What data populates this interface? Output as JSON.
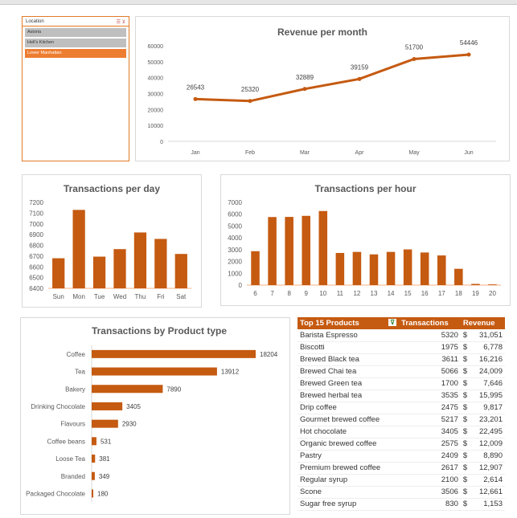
{
  "slicer": {
    "title": "Location",
    "items": [
      {
        "label": "Astoria",
        "selected": false
      },
      {
        "label": "Hell's Kitchen",
        "selected": false
      },
      {
        "label": "Lower Manhattan",
        "selected": true
      }
    ]
  },
  "colors": {
    "accent": "#c55a11",
    "slicer_selected": "#ed7d31"
  },
  "chart_data": [
    {
      "type": "line",
      "title": "Revenue per month",
      "categories": [
        "Jan",
        "Feb",
        "Mar",
        "Apr",
        "May",
        "Jun"
      ],
      "values": [
        26543,
        25320,
        32889,
        39159,
        51700,
        54446
      ],
      "ylim": [
        0,
        60000
      ],
      "yticks": [
        0,
        10000,
        20000,
        30000,
        40000,
        50000,
        60000
      ]
    },
    {
      "type": "bar",
      "title": "Transactions per day",
      "categories": [
        "Sun",
        "Mon",
        "Tue",
        "Wed",
        "Thu",
        "Fri",
        "Sat"
      ],
      "values": [
        6680,
        7130,
        6695,
        6765,
        6920,
        6860,
        6720
      ],
      "ylim": [
        6400,
        7200
      ],
      "yticks": [
        6400,
        6500,
        6600,
        6700,
        6800,
        6900,
        7000,
        7100,
        7200
      ]
    },
    {
      "type": "bar",
      "title": "Transactions per hour",
      "categories": [
        "6",
        "7",
        "8",
        "9",
        "10",
        "11",
        "12",
        "13",
        "14",
        "15",
        "16",
        "17",
        "18",
        "19",
        "20"
      ],
      "values": [
        2870,
        5760,
        5770,
        5860,
        6270,
        2720,
        2810,
        2600,
        2810,
        3020,
        2760,
        2510,
        1380,
        100,
        60
      ],
      "ylim": [
        0,
        7000
      ],
      "yticks": [
        0,
        1000,
        2000,
        3000,
        4000,
        5000,
        6000,
        7000
      ]
    },
    {
      "type": "bar",
      "orientation": "horizontal",
      "title": "Transactions by Product type",
      "categories": [
        "Coffee",
        "Tea",
        "Bakery",
        "Drinking Chocolate",
        "Flavours",
        "Coffee beans",
        "Loose Tea",
        "Branded",
        "Packaged Chocolate"
      ],
      "values": [
        18204,
        13912,
        7890,
        3405,
        2930,
        531,
        381,
        349,
        180
      ]
    }
  ],
  "table": {
    "headers": [
      "Top 15 Products",
      "Transactions",
      "Revenue"
    ],
    "rows": [
      [
        "Barista Espresso",
        "5320",
        "$",
        "31,051"
      ],
      [
        "Biscotti",
        "1975",
        "$",
        "6,778"
      ],
      [
        "Brewed Black tea",
        "3611",
        "$",
        "16,216"
      ],
      [
        "Brewed Chai tea",
        "5066",
        "$",
        "24,009"
      ],
      [
        "Brewed Green tea",
        "1700",
        "$",
        "7,646"
      ],
      [
        "Brewed herbal tea",
        "3535",
        "$",
        "15,995"
      ],
      [
        "Drip coffee",
        "2475",
        "$",
        "9,817"
      ],
      [
        "Gourmet brewed coffee",
        "5217",
        "$",
        "23,201"
      ],
      [
        "Hot chocolate",
        "3405",
        "$",
        "22,495"
      ],
      [
        "Organic brewed coffee",
        "2575",
        "$",
        "12,009"
      ],
      [
        "Pastry",
        "2409",
        "$",
        "8,890"
      ],
      [
        "Premium brewed coffee",
        "2617",
        "$",
        "12,907"
      ],
      [
        "Regular syrup",
        "2100",
        "$",
        "2,614"
      ],
      [
        "Scone",
        "3506",
        "$",
        "12,661"
      ],
      [
        "Sugar free syrup",
        "830",
        "$",
        "1,153"
      ]
    ]
  }
}
